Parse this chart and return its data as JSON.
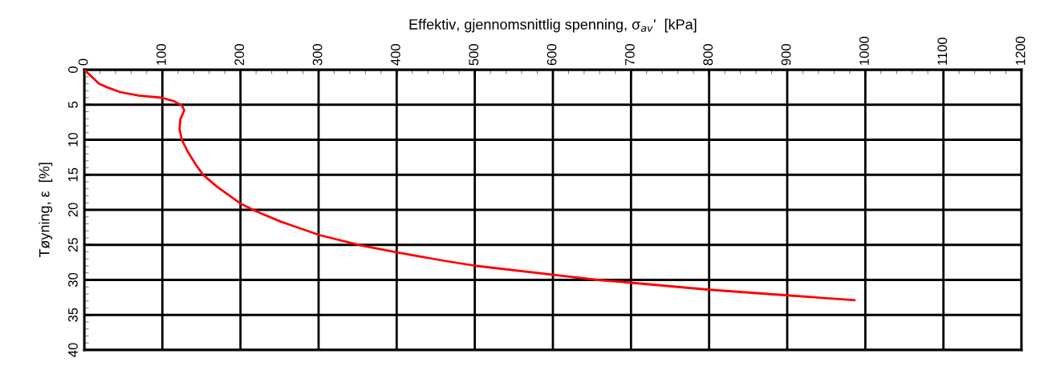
{
  "chart_data": {
    "type": "line",
    "xlabel": "Effektiv, gjennomsnittlig spenning, σ$_{av}$'  [kPa]",
    "ylabel": "Tøyning, ε  [%]",
    "series": [
      {
        "color": "#ff0000",
        "x": [
          0,
          19,
          29,
          46,
          70,
          99,
          115,
          125,
          128,
          123,
          122,
          125,
          132,
          142,
          152,
          170,
          200,
          216,
          224,
          252,
          265,
          301,
          355,
          402,
          457,
          502,
          603,
          657,
          700,
          800,
          900,
          986
        ],
        "values": [
          0,
          2.0,
          2.5,
          3.2,
          3.7,
          4.0,
          4.5,
          5.1,
          5.8,
          7.1,
          8.5,
          10.0,
          11.6,
          13.4,
          15.0,
          16.7,
          19.1,
          20.0,
          20.4,
          21.7,
          22.2,
          23.6,
          25.1,
          26.1,
          27.2,
          28.0,
          29.3,
          30.0,
          30.4,
          31.4,
          32.2,
          32.9
        ]
      }
    ],
    "xlim": [
      0,
      1200
    ],
    "xticks": [
      0,
      100,
      200,
      300,
      400,
      500,
      600,
      700,
      800,
      900,
      1000,
      1100,
      1200
    ],
    "ylim": [
      40,
      0
    ],
    "yticks": [
      0,
      5,
      10,
      15,
      20,
      25,
      30,
      35,
      40
    ],
    "grid": true,
    "line_style": "solid",
    "marker": "none"
  }
}
